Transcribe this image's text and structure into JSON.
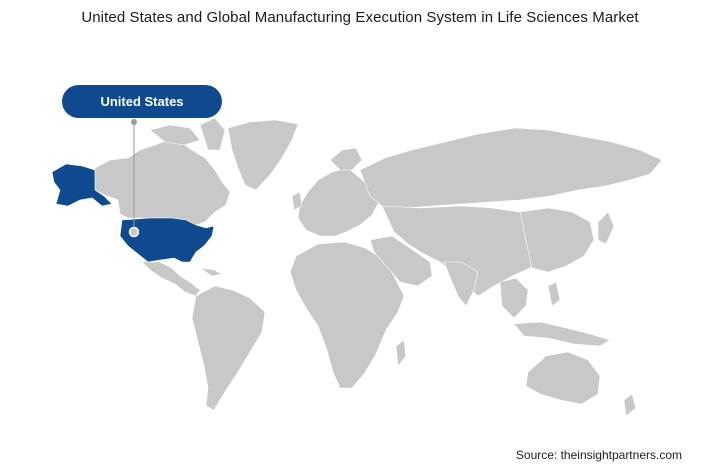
{
  "title": "United States and Global Manufacturing Execution System in Life Sciences Market",
  "callout": {
    "label": "United States",
    "region": "United States"
  },
  "source": "Source: theinsightpartners.com",
  "colors": {
    "highlight": "#104a8e",
    "land": "#c8c8c8",
    "leader_line": "#9a9a9a",
    "marker": "#9a9a9a"
  }
}
